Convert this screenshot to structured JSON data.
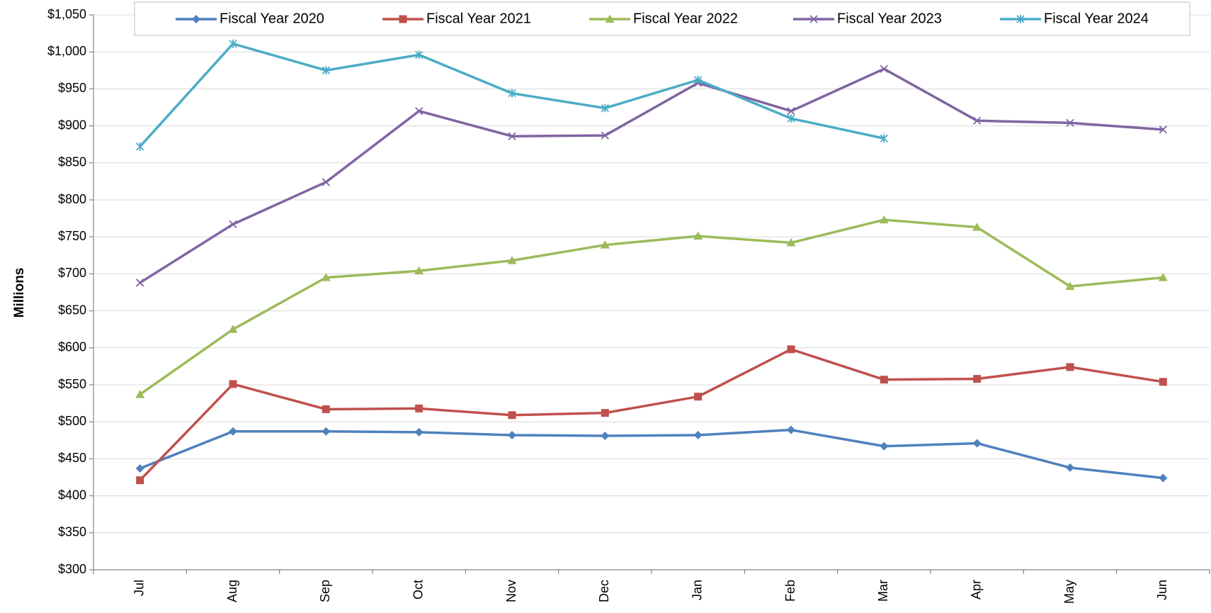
{
  "chart_data": {
    "type": "line",
    "y_label": "Millions",
    "categories": [
      "Jul",
      "Aug",
      "Sep",
      "Oct",
      "Nov",
      "Dec",
      "Jan",
      "Feb",
      "Mar",
      "Apr",
      "May",
      "Jun"
    ],
    "series": [
      {
        "name": "Fiscal Year 2020",
        "color": "#4f81bd",
        "marker": "diamond",
        "values": [
          437,
          487,
          487,
          486,
          482,
          481,
          482,
          489,
          467,
          471,
          438,
          424
        ]
      },
      {
        "name": "Fiscal Year 2021",
        "color": "#c0504d",
        "marker": "square",
        "values": [
          421,
          551,
          517,
          518,
          509,
          512,
          534,
          598,
          557,
          558,
          574,
          554
        ]
      },
      {
        "name": "Fiscal Year 2022",
        "color": "#9bbb59",
        "marker": "triangle",
        "values": [
          537,
          625,
          695,
          704,
          718,
          739,
          751,
          742,
          773,
          763,
          683,
          695
        ]
      },
      {
        "name": "Fiscal Year 2023",
        "color": "#8064a2",
        "marker": "x",
        "values": [
          688,
          767,
          824,
          920,
          886,
          887,
          958,
          920,
          977,
          907,
          904,
          895
        ]
      },
      {
        "name": "Fiscal Year 2024",
        "color": "#4bacc6",
        "marker": "star",
        "values": [
          872,
          1011,
          975,
          996,
          944,
          924,
          962,
          910,
          883,
          null,
          null,
          null
        ]
      }
    ],
    "ylim": [
      300,
      1050
    ],
    "yticks": [
      {
        "value": 300,
        "label": "$300"
      },
      {
        "value": 350,
        "label": "$350"
      },
      {
        "value": 400,
        "label": "$400"
      },
      {
        "value": 450,
        "label": "$450"
      },
      {
        "value": 500,
        "label": "$500"
      },
      {
        "value": 550,
        "label": "$550"
      },
      {
        "value": 600,
        "label": "$600"
      },
      {
        "value": 650,
        "label": "$650"
      },
      {
        "value": 700,
        "label": "$700"
      },
      {
        "value": 750,
        "label": "$750"
      },
      {
        "value": 800,
        "label": "$800"
      },
      {
        "value": 850,
        "label": "$850"
      },
      {
        "value": 900,
        "label": "$900"
      },
      {
        "value": 950,
        "label": "$950"
      },
      {
        "value": 1000,
        "label": "$1,000"
      },
      {
        "value": 1050,
        "label": "$1,050"
      }
    ],
    "grid": true,
    "legend": "top"
  }
}
